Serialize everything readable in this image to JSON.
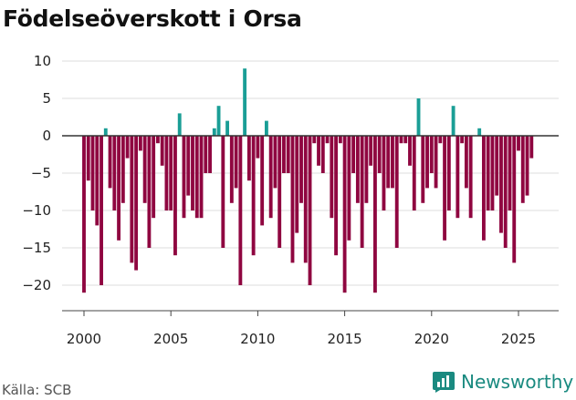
{
  "title": "Födelseöverskott i Orsa",
  "source": "Källa: SCB",
  "brand": "Newsworthy",
  "colors": {
    "positive": "#1a9e96",
    "negative": "#8f0640",
    "grid": "#dddddd",
    "zero_line": "#333333",
    "brand": "#1a8a80"
  },
  "chart_data": {
    "type": "bar",
    "title": "Födelseöverskott i Orsa",
    "xlabel": "",
    "ylabel": "",
    "ylim": [
      -22,
      10
    ],
    "xlim": [
      1999.3,
      2026.5
    ],
    "y_ticks": [
      10,
      5,
      0,
      -5,
      -10,
      -15,
      -20
    ],
    "y_tick_labels": [
      "10",
      "5",
      "0",
      "−5",
      "−10",
      "−15",
      "−20"
    ],
    "x_ticks": [
      2000,
      2005,
      2010,
      2015,
      2020,
      2025
    ],
    "x_tick_labels": [
      "2000",
      "2005",
      "2010",
      "2015",
      "2020",
      "2025"
    ],
    "frequency": "quarterly",
    "start": 2000.0,
    "step": 0.25,
    "values": [
      -21,
      -6,
      -10,
      -12,
      -20,
      1,
      -7,
      -10,
      -14,
      -9,
      -3,
      -17,
      -18,
      -2,
      -9,
      -15,
      -11,
      -1,
      -4,
      -10,
      -10,
      -16,
      3,
      -11,
      -8,
      -10,
      -11,
      -11,
      -5,
      -5,
      1,
      4,
      -15,
      2,
      -9,
      -7,
      -20,
      9,
      -6,
      -16,
      -3,
      -12,
      2,
      -11,
      -7,
      -15,
      -5,
      -5,
      -17,
      -13,
      -9,
      -17,
      -20,
      -1,
      -4,
      -5,
      -1,
      -11,
      -16,
      -1,
      -21,
      -14,
      -5,
      -9,
      -15,
      -9,
      -4,
      -21,
      -5,
      -10,
      -7,
      -7,
      -15,
      -1,
      -1,
      -4,
      -10,
      5,
      -9,
      -7,
      -5,
      -7,
      -1,
      -14,
      -10,
      4,
      -11,
      -1,
      -7,
      -11,
      0,
      1,
      -14,
      -10,
      -10,
      -8,
      -13,
      -15,
      -10,
      -17,
      -2,
      -9,
      -8,
      -3
    ]
  }
}
